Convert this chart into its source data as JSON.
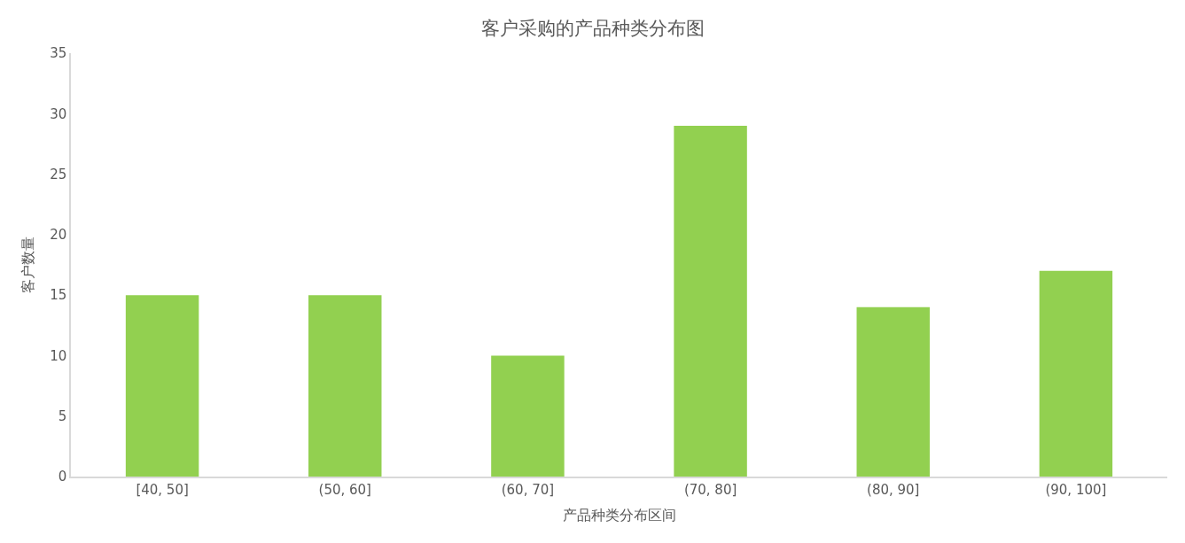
{
  "chart_data": {
    "type": "bar",
    "title": "客户采购的产品种类分布图",
    "xlabel": "产品种类分布区间",
    "ylabel": "客户数量",
    "categories": [
      "[40, 50]",
      "(50, 60]",
      "(60, 70]",
      "(70, 80]",
      "(80, 90]",
      "(90, 100]"
    ],
    "values": [
      15,
      15,
      10,
      29,
      14,
      17
    ],
    "color": "#92d050",
    "ylim": [
      0,
      35
    ],
    "yticks": [
      0,
      5,
      10,
      15,
      20,
      25,
      30,
      35
    ]
  }
}
